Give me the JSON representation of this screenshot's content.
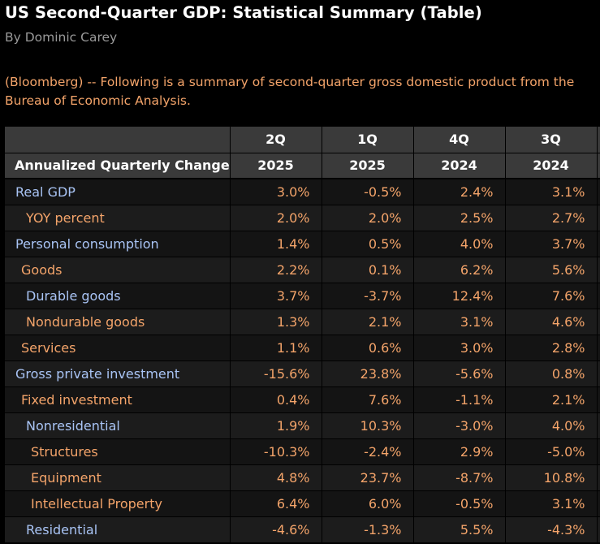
{
  "article": {
    "headline": "US Second-Quarter GDP: Statistical Summary (Table)",
    "byline": "By Dominic Carey",
    "intro": "(Bloomberg) -- Following is a summary of second-quarter gross domestic product from the Bureau of Economic Analysis."
  },
  "table": {
    "column_title": "Annualized Quarterly Change",
    "quarters": [
      "2Q",
      "1Q",
      "4Q",
      "3Q"
    ],
    "years": [
      "2025",
      "2025",
      "2024",
      "2024"
    ],
    "rows": [
      {
        "label": "Real GDP",
        "values": [
          "3.0%",
          "-0.5%",
          "2.4%",
          "3.1%"
        ]
      },
      {
        "label": "YOY percent",
        "values": [
          "2.0%",
          "2.0%",
          "2.5%",
          "2.7%"
        ]
      },
      {
        "label": "Personal consumption",
        "values": [
          "1.4%",
          "0.5%",
          "4.0%",
          "3.7%"
        ]
      },
      {
        "label": "Goods",
        "values": [
          "2.2%",
          "0.1%",
          "6.2%",
          "5.6%"
        ]
      },
      {
        "label": "Durable goods",
        "values": [
          "3.7%",
          "-3.7%",
          "12.4%",
          "7.6%"
        ]
      },
      {
        "label": "Nondurable goods",
        "values": [
          "1.3%",
          "2.1%",
          "3.1%",
          "4.6%"
        ]
      },
      {
        "label": "Services",
        "values": [
          "1.1%",
          "0.6%",
          "3.0%",
          "2.8%"
        ]
      },
      {
        "label": "Gross private investment",
        "values": [
          "-15.6%",
          "23.8%",
          "-5.6%",
          "0.8%"
        ]
      },
      {
        "label": "Fixed investment",
        "values": [
          "0.4%",
          "7.6%",
          "-1.1%",
          "2.1%"
        ]
      },
      {
        "label": "Nonresidential",
        "values": [
          "1.9%",
          "10.3%",
          "-3.0%",
          "4.0%"
        ]
      },
      {
        "label": "Structures",
        "values": [
          "-10.3%",
          "-2.4%",
          "2.9%",
          "-5.0%"
        ]
      },
      {
        "label": "Equipment",
        "values": [
          "4.8%",
          "23.7%",
          "-8.7%",
          "10.8%"
        ]
      },
      {
        "label": "Intellectual Property",
        "values": [
          "6.4%",
          "6.0%",
          "-0.5%",
          "3.1%"
        ]
      },
      {
        "label": "Residential",
        "values": [
          "-4.6%",
          "-1.3%",
          "5.5%",
          "-4.3%"
        ]
      }
    ]
  },
  "colors": {
    "background": "#000000",
    "headline": "#ffffff",
    "byline": "#9a9a9a",
    "accent_orange": "#f4a46a",
    "label_blue": "#a9c4f5",
    "header_bg": "#3a3a3a"
  }
}
